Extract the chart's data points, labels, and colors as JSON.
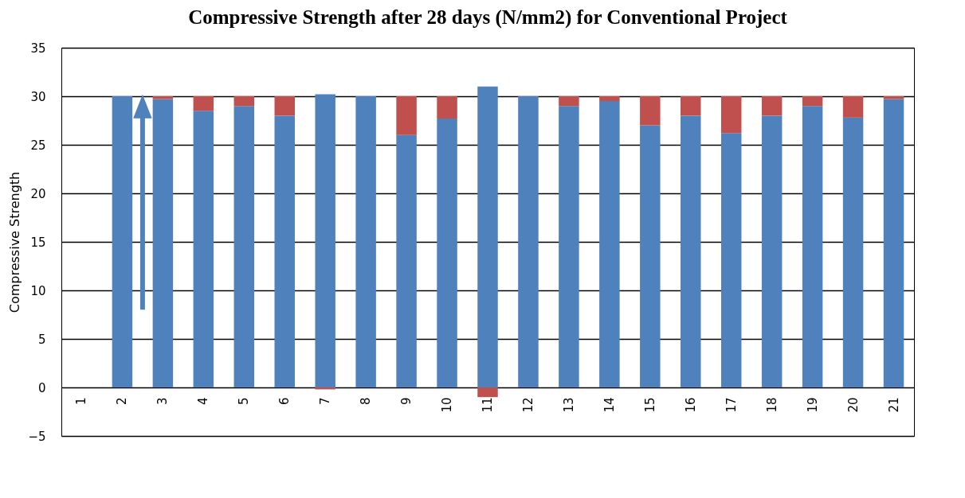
{
  "chart_data": {
    "type": "bar",
    "title": "Compressive Strength after 28 days (N/mm2) for Conventional Project",
    "ylabel": "Compressive Strength",
    "categories": [
      "1",
      "2",
      "3",
      "4",
      "5",
      "6",
      "7",
      "8",
      "9",
      "10",
      "11",
      "12",
      "13",
      "14",
      "15",
      "16",
      "17",
      "18",
      "19",
      "20",
      "21"
    ],
    "stacked": true,
    "series": [
      {
        "color": "#4f81bd",
        "values": [
          null,
          30,
          29.7,
          28.5,
          29,
          28,
          30.2,
          30,
          26,
          27.7,
          31,
          30,
          29,
          29.5,
          27,
          28,
          26.2,
          28,
          29,
          27.8,
          29.7
        ]
      },
      {
        "color": "#c0504d",
        "values": [
          null,
          0,
          0.3,
          1.5,
          1,
          2,
          -0.2,
          0,
          4,
          2.3,
          -1,
          0,
          1,
          0.5,
          3,
          2,
          3.8,
          2,
          1,
          2.2,
          0.3
        ]
      }
    ],
    "ylim": [
      -5,
      35
    ],
    "yticks": [
      -5,
      0,
      5,
      10,
      15,
      20,
      25,
      30,
      35
    ],
    "grid": "y",
    "legend": false
  }
}
